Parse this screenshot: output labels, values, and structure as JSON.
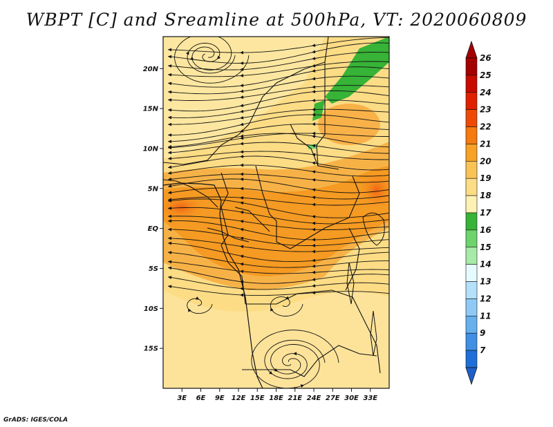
{
  "title": "WBPT [C] and Sreamline at 500hPa, VT: 2020060809",
  "credit": "GrADS: IGES/COLA",
  "map": {
    "lon_range": [
      0,
      36
    ],
    "lat_range": [
      -20,
      24
    ],
    "lat_ticks": [
      {
        "value": 20,
        "label": "20N"
      },
      {
        "value": 15,
        "label": "15N"
      },
      {
        "value": 10,
        "label": "10N"
      },
      {
        "value": 5,
        "label": "5N"
      },
      {
        "value": 0,
        "label": "EQ"
      },
      {
        "value": -5,
        "label": "5S"
      },
      {
        "value": -10,
        "label": "10S"
      },
      {
        "value": -15,
        "label": "15S"
      }
    ],
    "lon_ticks": [
      {
        "value": 3,
        "label": "3E"
      },
      {
        "value": 6,
        "label": "6E"
      },
      {
        "value": 9,
        "label": "9E"
      },
      {
        "value": 12,
        "label": "12E"
      },
      {
        "value": 15,
        "label": "15E"
      },
      {
        "value": 18,
        "label": "18E"
      },
      {
        "value": 21,
        "label": "21E"
      },
      {
        "value": 24,
        "label": "24E"
      },
      {
        "value": 27,
        "label": "27E"
      },
      {
        "value": 30,
        "label": "30E"
      },
      {
        "value": 33,
        "label": "33E"
      }
    ]
  },
  "colorbar": {
    "levels": [
      {
        "label": "26",
        "color": "#a50000"
      },
      {
        "label": "25",
        "color": "#c80a00"
      },
      {
        "label": "24",
        "color": "#e02000"
      },
      {
        "label": "23",
        "color": "#ef4a05"
      },
      {
        "label": "22",
        "color": "#f57a10"
      },
      {
        "label": "21",
        "color": "#f7a225"
      },
      {
        "label": "20",
        "color": "#f9c455"
      },
      {
        "label": "19",
        "color": "#fcdc85"
      },
      {
        "label": "18",
        "color": "#fdf2b4"
      },
      {
        "label": "17",
        "color": "#37b337"
      },
      {
        "label": "16",
        "color": "#6dd36d"
      },
      {
        "label": "15",
        "color": "#a8eaa8"
      },
      {
        "label": "14",
        "color": "#e6fbff"
      },
      {
        "label": "13",
        "color": "#b4e0fa"
      },
      {
        "label": "12",
        "color": "#8ecaf5"
      },
      {
        "label": "11",
        "color": "#66b0ee"
      },
      {
        "label": "9",
        "color": "#3f8fe5"
      },
      {
        "label": "7",
        "color": "#1e6fd8"
      }
    ],
    "bottom_color": "#1e5fcc"
  }
}
